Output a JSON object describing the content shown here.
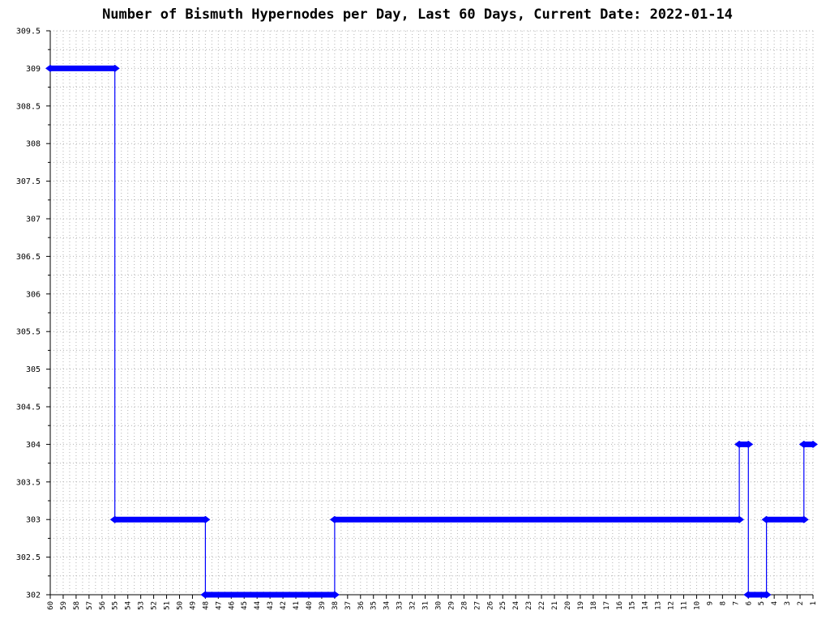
{
  "chart_data": {
    "type": "line",
    "title": "Number of Bismuth Hypernodes per Day, Last 60 Days, Current Date: 2022-01-14",
    "xlabel": "",
    "ylabel": "",
    "ylim": [
      302,
      309.5
    ],
    "y_ticks": [
      "309.5",
      "309",
      "308.5",
      "308",
      "307.5",
      "307",
      "306.5",
      "306",
      "305.5",
      "305",
      "304.5",
      "304",
      "303.5",
      "303",
      "302.5",
      "302"
    ],
    "x_ticks": [
      "60",
      "59",
      "58",
      "57",
      "56",
      "55",
      "54",
      "53",
      "52",
      "51",
      "50",
      "49",
      "48",
      "47",
      "46",
      "45",
      "44",
      "43",
      "42",
      "41",
      "40",
      "39",
      "38",
      "37",
      "36",
      "35",
      "34",
      "33",
      "32",
      "31",
      "30",
      "29",
      "28",
      "27",
      "26",
      "25",
      "24",
      "23",
      "22",
      "21",
      "20",
      "19",
      "18",
      "17",
      "16",
      "15",
      "14",
      "13",
      "12",
      "11",
      "10",
      "9",
      "8",
      "7",
      "6",
      "5",
      "4",
      "3",
      "2",
      "1"
    ],
    "grid": true,
    "series": [
      {
        "color": "#0000ff",
        "x": [
          60,
          55,
          55,
          48,
          48,
          38,
          38,
          6.7,
          6.7,
          6,
          6,
          4.6,
          4.6,
          1.7,
          1.7,
          1
        ],
        "y": [
          309,
          309,
          303,
          303,
          302,
          302,
          303,
          303,
          304,
          304,
          302,
          302,
          303,
          303,
          304,
          304
        ]
      }
    ]
  }
}
